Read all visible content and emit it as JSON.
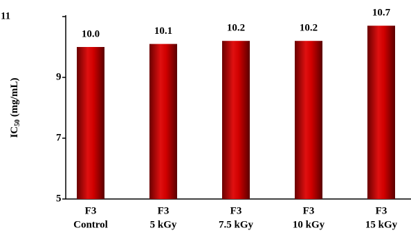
{
  "chart_data": {
    "type": "bar",
    "y_label": [
      "IC",
      "50",
      " (mg/mL)"
    ],
    "categories": [
      [
        "F3",
        "Control"
      ],
      [
        "F3",
        "5 kGy"
      ],
      [
        "F3",
        "7.5 kGy"
      ],
      [
        "F3",
        "10 kGy"
      ],
      [
        "F3",
        "15 kGy"
      ]
    ],
    "values": [
      10.0,
      10.1,
      10.2,
      10.2,
      10.7
    ],
    "value_labels": [
      "10.0",
      "10.1",
      "10.2",
      "10.2",
      "10.7"
    ],
    "color": "#c00000",
    "ylim": [
      5,
      11
    ],
    "yticks": [
      5,
      7,
      9,
      11
    ],
    "grid": false
  }
}
